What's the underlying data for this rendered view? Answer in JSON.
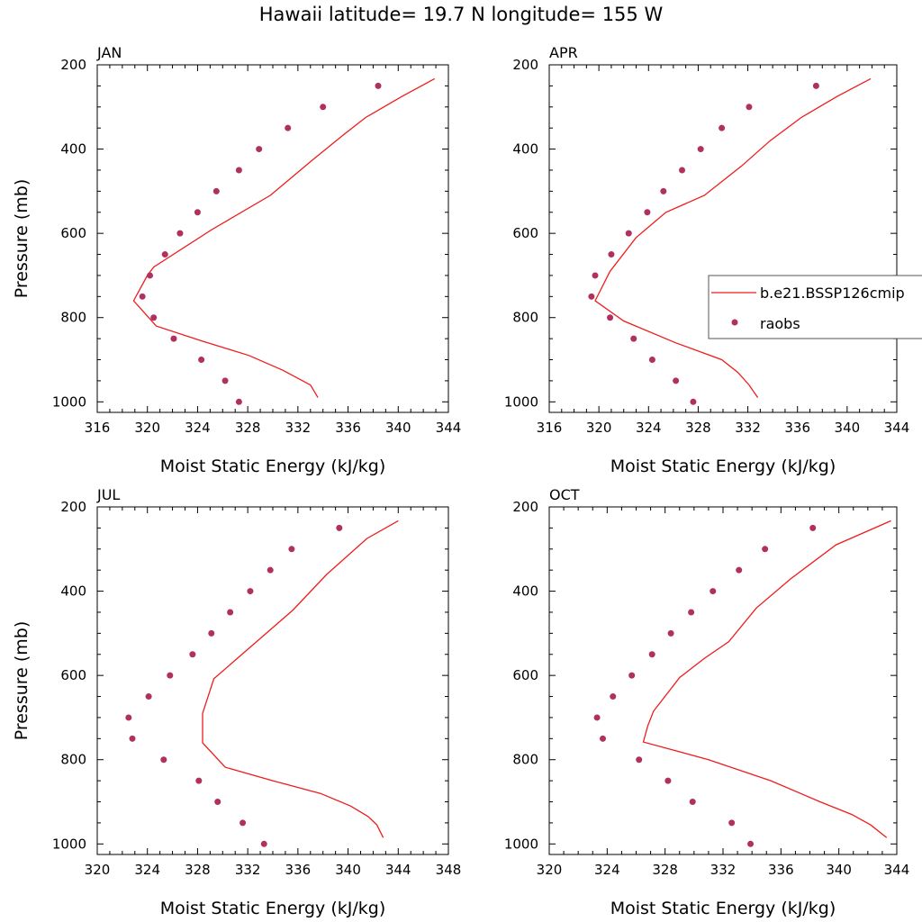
{
  "figure_title": "Hawaii  latitude= 19.7 N longitude= 155 W",
  "legend": {
    "model_label": "b.e21.BSSP126cmip",
    "obs_label": "raobs",
    "model_color": "#ee1c1c",
    "obs_color": "#b03060"
  },
  "chart_data": [
    {
      "type": "line",
      "title": "JAN",
      "xlabel": "Moist Static Energy (kJ/kg)",
      "ylabel": "Pressure (mb)",
      "xlim": [
        316,
        344
      ],
      "ylim": [
        1025,
        200
      ],
      "xticks": [
        316,
        320,
        324,
        328,
        332,
        336,
        340,
        344
      ],
      "yticks": [
        200,
        400,
        600,
        800,
        1000
      ],
      "series": [
        {
          "name": "b.e21.BSSP126cmip",
          "style": "line",
          "x": [
            342.9,
            340.3,
            337.4,
            335.6,
            333.2,
            329.8,
            325.2,
            320.5,
            320.0,
            318.9,
            320.7,
            324.3,
            328.1,
            330.8,
            333.0,
            333.6
          ],
          "y": [
            233,
            275,
            325,
            367,
            425,
            510,
            590,
            680,
            700,
            760,
            820,
            855,
            890,
            925,
            960,
            990
          ]
        },
        {
          "name": "raobs",
          "style": "points",
          "x": [
            338.4,
            334.0,
            331.2,
            328.9,
            327.3,
            325.5,
            324.0,
            322.6,
            321.4,
            320.2,
            319.6,
            320.5,
            322.1,
            324.3,
            326.2,
            327.3
          ],
          "y": [
            250,
            300,
            350,
            400,
            450,
            500,
            550,
            600,
            650,
            700,
            750,
            800,
            850,
            900,
            950,
            1000
          ]
        }
      ]
    },
    {
      "type": "line",
      "title": "APR",
      "xlabel": "Moist Static Energy (kJ/kg)",
      "ylabel": "",
      "xlim": [
        316,
        344
      ],
      "ylim": [
        1025,
        200
      ],
      "xticks": [
        316,
        320,
        324,
        328,
        332,
        336,
        340,
        344
      ],
      "yticks": [
        200,
        400,
        600,
        800,
        1000
      ],
      "series": [
        {
          "name": "b.e21.BSSP126cmip",
          "style": "line",
          "x": [
            341.9,
            339.2,
            336.3,
            333.8,
            331.5,
            328.5,
            325.4,
            323.0,
            320.9,
            319.7,
            322.0,
            326.2,
            329.9,
            331.2,
            332.1,
            332.8
          ],
          "y": [
            233,
            275,
            325,
            380,
            440,
            510,
            550,
            610,
            690,
            760,
            808,
            860,
            900,
            930,
            960,
            990
          ]
        },
        {
          "name": "raobs",
          "style": "points",
          "x": [
            337.5,
            332.1,
            329.9,
            328.2,
            326.7,
            325.2,
            323.9,
            322.4,
            321.0,
            319.7,
            319.4,
            320.9,
            322.8,
            324.3,
            326.2,
            327.6
          ],
          "y": [
            250,
            300,
            350,
            400,
            450,
            500,
            550,
            600,
            650,
            700,
            750,
            800,
            850,
            900,
            950,
            1000
          ]
        }
      ]
    },
    {
      "type": "line",
      "title": "JUL",
      "xlabel": "Moist Static Energy (kJ/kg)",
      "ylabel": "Pressure (mb)",
      "xlim": [
        320,
        348
      ],
      "ylim": [
        1025,
        200
      ],
      "xticks": [
        320,
        324,
        328,
        332,
        336,
        340,
        344,
        348
      ],
      "yticks": [
        200,
        400,
        600,
        800,
        1000
      ],
      "series": [
        {
          "name": "b.e21.BSSP126cmip",
          "style": "line",
          "x": [
            344.0,
            341.5,
            338.3,
            335.6,
            332.5,
            329.3,
            328.4,
            328.4,
            330.2,
            334.0,
            337.8,
            340.2,
            341.6,
            342.3,
            342.8
          ],
          "y": [
            233,
            275,
            360,
            445,
            525,
            608,
            690,
            760,
            818,
            850,
            880,
            910,
            935,
            955,
            985
          ]
        },
        {
          "name": "raobs",
          "style": "points",
          "x": [
            339.3,
            335.5,
            333.8,
            332.2,
            330.6,
            329.1,
            327.6,
            325.8,
            324.1,
            322.5,
            322.8,
            325.3,
            328.1,
            329.6,
            331.6,
            333.3
          ],
          "y": [
            250,
            300,
            350,
            400,
            450,
            500,
            550,
            600,
            650,
            700,
            750,
            800,
            850,
            900,
            950,
            1000
          ]
        }
      ]
    },
    {
      "type": "line",
      "title": "OCT",
      "xlabel": "Moist Static Energy (kJ/kg)",
      "ylabel": "",
      "xlim": [
        320,
        344
      ],
      "ylim": [
        1025,
        200
      ],
      "xticks": [
        320,
        324,
        328,
        332,
        336,
        340,
        344
      ],
      "yticks": [
        200,
        400,
        600,
        800,
        1000
      ],
      "series": [
        {
          "name": "b.e21.BSSP126cmip",
          "style": "line",
          "x": [
            343.6,
            339.8,
            336.7,
            334.3,
            332.4,
            330.7,
            329.0,
            327.2,
            326.8,
            326.5,
            331.0,
            335.3,
            338.7,
            340.9,
            342.2,
            343.3
          ],
          "y": [
            233,
            290,
            370,
            440,
            520,
            560,
            605,
            685,
            720,
            758,
            800,
            850,
            900,
            930,
            955,
            985
          ]
        },
        {
          "name": "raobs",
          "style": "points",
          "x": [
            338.2,
            334.9,
            333.1,
            331.3,
            329.8,
            328.4,
            327.1,
            325.7,
            324.4,
            323.3,
            323.7,
            326.2,
            328.2,
            329.9,
            332.6,
            333.9
          ],
          "y": [
            250,
            300,
            350,
            400,
            450,
            500,
            550,
            600,
            650,
            700,
            750,
            800,
            850,
            900,
            950,
            1000
          ]
        }
      ]
    }
  ]
}
